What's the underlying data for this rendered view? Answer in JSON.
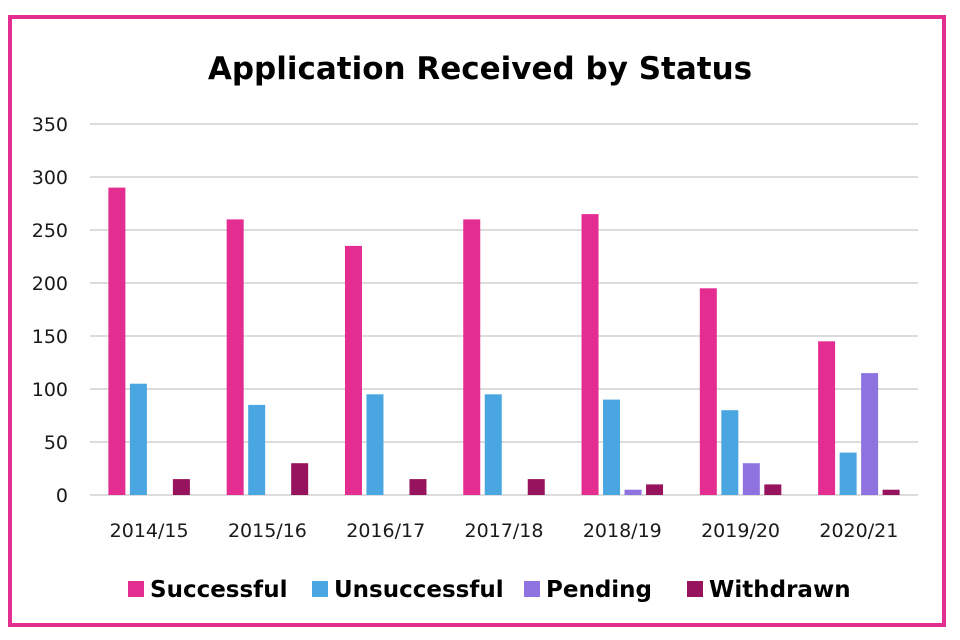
{
  "chart_data": {
    "type": "bar",
    "title": "Application Received by Status",
    "xlabel": "",
    "ylabel": "",
    "ylim": [
      0,
      350
    ],
    "yticks": [
      0,
      50,
      100,
      150,
      200,
      250,
      300,
      350
    ],
    "categories": [
      "2014/15",
      "2015/16",
      "2016/17",
      "2017/18",
      "2018/19",
      "2019/20",
      "2020/21"
    ],
    "series": [
      {
        "name": "Successful",
        "color": "#E32D91",
        "values": [
          290,
          260,
          235,
          260,
          265,
          195,
          145
        ]
      },
      {
        "name": "Unsuccessful",
        "color": "#4AA6E0",
        "values": [
          105,
          85,
          95,
          95,
          90,
          80,
          40
        ]
      },
      {
        "name": "Pending",
        "color": "#8E73E0",
        "values": [
          0,
          0,
          0,
          0,
          5,
          30,
          115
        ]
      },
      {
        "name": "Withdrawn",
        "color": "#97135E",
        "values": [
          15,
          30,
          15,
          15,
          10,
          10,
          5
        ]
      }
    ],
    "grid": true,
    "legend_position": "bottom"
  },
  "colors": {
    "border": "#E22E8F",
    "gridline": "#d0d0d0"
  }
}
